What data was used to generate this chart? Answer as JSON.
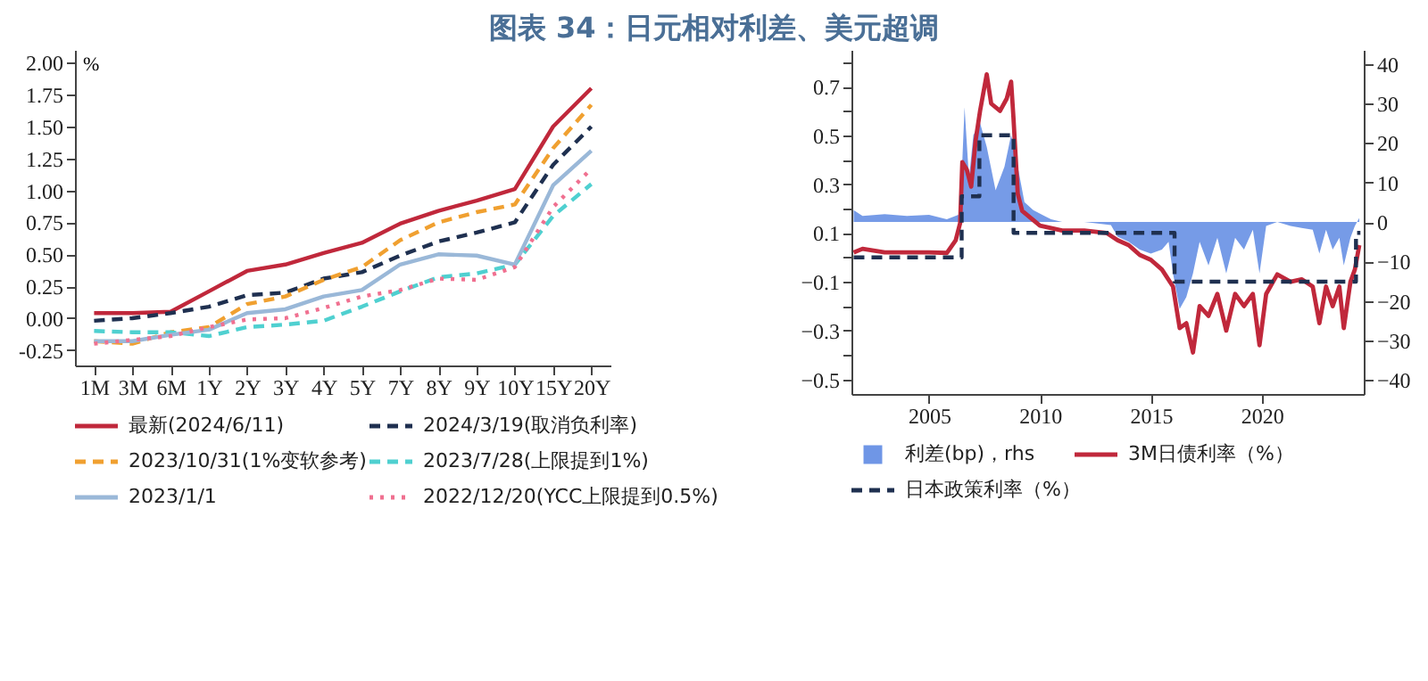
{
  "chart_data": [
    {
      "type": "line",
      "title": "图表 34：日元相对利差、美元超调",
      "ylabel": "%",
      "legend": "bottom",
      "grid": false,
      "categories": [
        "1M",
        "3M",
        "6M",
        "1Y",
        "2Y",
        "3Y",
        "4Y",
        "5Y",
        "7Y",
        "8Y",
        "9Y",
        "10Y",
        "15Y",
        "20Y"
      ],
      "ylim": [
        -0.37,
        2.1
      ],
      "yticks": [
        {
          "value": -0.25,
          "label": "-0.25"
        },
        {
          "value": 0,
          "label": "0.00"
        },
        {
          "value": 0.25,
          "label": "0.25"
        },
        {
          "value": 0.5,
          "label": "0.50"
        },
        {
          "value": 0.75,
          "label": "0.75"
        },
        {
          "value": 1,
          "label": "1.00"
        },
        {
          "value": 1.25,
          "label": "1.25"
        },
        {
          "value": 1.5,
          "label": "1.50"
        },
        {
          "value": 1.75,
          "label": "1.75"
        },
        {
          "value": 2,
          "label": "2.00"
        }
      ],
      "series": [
        {
          "name": "最新(2024/6/11)",
          "color": "#c0283b",
          "line_style": "solid",
          "values": [
            0.04,
            0.04,
            0.05,
            0.21,
            0.37,
            0.42,
            0.51,
            0.59,
            0.74,
            0.84,
            0.92,
            1.01,
            1.5,
            1.8
          ]
        },
        {
          "name": "2024/3/19(取消负利率)",
          "color": "#1f3050",
          "line_style": "dashed",
          "values": [
            -0.02,
            0.0,
            0.04,
            0.09,
            0.18,
            0.2,
            0.31,
            0.36,
            0.49,
            0.6,
            0.67,
            0.75,
            1.2,
            1.5
          ]
        },
        {
          "name": "2023/10/31(1%变软参考)",
          "color": "#f0a030",
          "line_style": "dashed",
          "values": [
            -0.18,
            -0.2,
            -0.11,
            -0.07,
            0.11,
            0.17,
            0.3,
            0.4,
            0.61,
            0.75,
            0.83,
            0.89,
            1.33,
            1.67
          ]
        },
        {
          "name": "2023/7/28(上限提到1%)",
          "color": "#4fd0d0",
          "line_style": "dashed",
          "values": [
            -0.1,
            -0.11,
            -0.11,
            -0.14,
            -0.07,
            -0.05,
            -0.02,
            0.09,
            0.21,
            0.32,
            0.35,
            0.42,
            0.8,
            1.05
          ]
        },
        {
          "name": "2023/1/1",
          "color": "#9ab8d8",
          "line_style": "solid",
          "values": [
            -0.18,
            -0.18,
            -0.13,
            -0.09,
            0.04,
            0.07,
            0.17,
            0.22,
            0.42,
            0.5,
            0.49,
            0.42,
            1.04,
            1.31
          ]
        },
        {
          "name": "2022/12/20(YCC上限提到0.5%)",
          "color": "#f07090",
          "line_style": "dotted",
          "values": [
            -0.2,
            -0.17,
            -0.14,
            -0.07,
            -0.01,
            0.0,
            0.08,
            0.17,
            0.22,
            0.31,
            0.3,
            0.4,
            0.87,
            1.17
          ]
        }
      ]
    },
    {
      "type": "line",
      "legend": "bottom",
      "grid": false,
      "xlim": [
        2001.5,
        2024.6
      ],
      "xticks": [
        2005,
        2010,
        2015,
        2020
      ],
      "ylim": [
        -0.56,
        0.85
      ],
      "yticks": [
        -0.5,
        {
          "value": -0.4,
          "label": null
        },
        -0.3,
        {
          "value": -0.2,
          "label": null
        },
        -0.1,
        {
          "value": 0,
          "label": null
        },
        0.1,
        {
          "value": 0.2,
          "label": null
        },
        0.3,
        {
          "value": 0.4,
          "label": null
        },
        0.5,
        {
          "value": 0.6,
          "label": null
        },
        0.7,
        {
          "value": 0.8,
          "label": null
        }
      ],
      "y2lim": [
        -43.5,
        43.5
      ],
      "y2ticks": [
        -40,
        -30,
        -20,
        -10,
        0,
        10,
        20,
        30,
        40
      ],
      "series": [
        {
          "name": "利差(bp)，rhs",
          "type": "area",
          "axis": "y2",
          "color": "#6f96e6",
          "x": [
            2001.6,
            2002,
            2003,
            2004,
            2005,
            2005.8,
            2006.4,
            2006.6,
            2006.8,
            2007,
            2007.3,
            2007.6,
            2008,
            2008.4,
            2008.7,
            2009,
            2009.3,
            2009.7,
            2010.2,
            2010.5,
            2011,
            2012,
            2013.2,
            2013.5,
            2014,
            2014.5,
            2015,
            2015.5,
            2015.8,
            2016,
            2016.3,
            2016.6,
            2016.9,
            2017.2,
            2017.6,
            2018,
            2018.4,
            2018.8,
            2019.2,
            2019.6,
            2019.9,
            2020.2,
            2020.7,
            2021.3,
            2021.8,
            2022.3,
            2022.6,
            2022.9,
            2023.2,
            2023.5,
            2023.7,
            2024,
            2024.2,
            2024.4
          ],
          "values": [
            3,
            1.5,
            2,
            1.5,
            1.8,
            0.7,
            2,
            29,
            11,
            22,
            25,
            19,
            8,
            14,
            22,
            14,
            5,
            3,
            1.5,
            0.7,
            0,
            0,
            -0.8,
            -3.7,
            -5,
            -7,
            -8,
            -7,
            -5,
            -13,
            -22,
            -19,
            -13,
            -5,
            -11,
            -4,
            -13,
            -4,
            -7,
            -2,
            -13,
            -1,
            0,
            -1,
            -1.5,
            -2,
            -8,
            -2,
            -7,
            -4,
            -11,
            -4,
            -1,
            1
          ]
        },
        {
          "name": "3M日债利率（%）",
          "type": "line",
          "color": "#c0283b",
          "line_style": "solid",
          "x": [
            2001.6,
            2002,
            2003,
            2004,
            2005,
            2005.8,
            2006.2,
            2006.4,
            2006.5,
            2006.7,
            2006.9,
            2007.1,
            2007.3,
            2007.6,
            2007.8,
            2008.2,
            2008.5,
            2008.7,
            2008.8,
            2009,
            2009.2,
            2009.6,
            2010,
            2010.5,
            2011,
            2012,
            2013,
            2013.5,
            2014,
            2014.5,
            2015,
            2015.5,
            2016,
            2016.3,
            2016.6,
            2016.9,
            2017.2,
            2017.6,
            2018,
            2018.4,
            2018.8,
            2019.2,
            2019.6,
            2019.9,
            2020.2,
            2020.7,
            2021.3,
            2021.8,
            2022.3,
            2022.6,
            2022.9,
            2023.2,
            2023.5,
            2023.7,
            2024,
            2024.2,
            2024.4
          ],
          "values": [
            0.02,
            0.035,
            0.02,
            0.02,
            0.02,
            0.018,
            0.07,
            0.14,
            0.39,
            0.36,
            0.29,
            0.48,
            0.6,
            0.75,
            0.63,
            0.6,
            0.65,
            0.72,
            0.58,
            0.26,
            0.19,
            0.16,
            0.13,
            0.12,
            0.11,
            0.11,
            0.1,
            0.07,
            0.05,
            0.01,
            -0.01,
            -0.05,
            -0.12,
            -0.29,
            -0.27,
            -0.39,
            -0.2,
            -0.24,
            -0.15,
            -0.3,
            -0.15,
            -0.2,
            -0.15,
            -0.36,
            -0.15,
            -0.07,
            -0.1,
            -0.09,
            -0.12,
            -0.27,
            -0.12,
            -0.2,
            -0.12,
            -0.29,
            -0.1,
            -0.05,
            0.05
          ]
        },
        {
          "name": "日本政策利率（%）",
          "type": "step",
          "color": "#1f3050",
          "line_style": "dashed",
          "x": [
            2001.6,
            2006.47,
            2007.27,
            2008.81,
            2016.07,
            2024.25,
            2024.45
          ],
          "values": [
            0,
            0.25,
            0.5,
            0.1,
            -0.1,
            0.1,
            0.1
          ]
        }
      ]
    }
  ]
}
